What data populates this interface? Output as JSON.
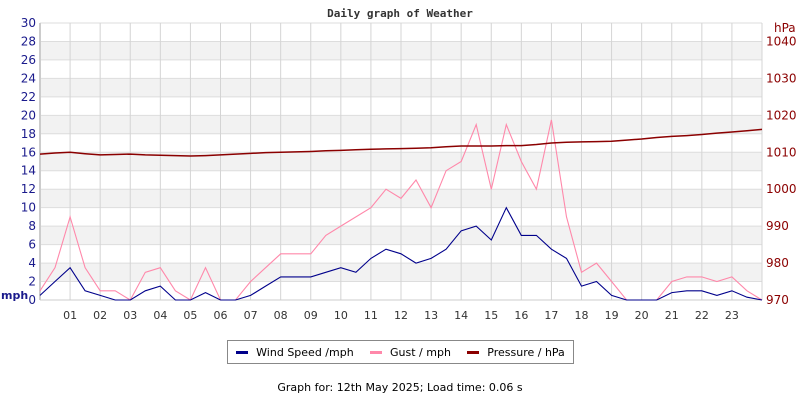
{
  "chart_data": {
    "type": "line",
    "title": "Daily graph of Weather",
    "x_tick_labels": [
      "01",
      "02",
      "03",
      "04",
      "05",
      "06",
      "07",
      "08",
      "09",
      "10",
      "11",
      "12",
      "13",
      "14",
      "15",
      "16",
      "17",
      "18",
      "19",
      "20",
      "21",
      "22",
      "23"
    ],
    "xlim": [
      0,
      24
    ],
    "grid": true,
    "left_axis": {
      "label": "mph",
      "ylim": [
        0,
        30
      ],
      "ticks": [
        0,
        2,
        4,
        6,
        8,
        10,
        12,
        14,
        16,
        18,
        20,
        22,
        24,
        26,
        28,
        30
      ]
    },
    "right_axis": {
      "label": "hPa",
      "ylim": [
        970,
        1045
      ],
      "ticks": [
        970,
        980,
        990,
        1000,
        1010,
        1020,
        1030,
        1040
      ]
    },
    "x": [
      0,
      0.5,
      1,
      1.5,
      2,
      2.5,
      3,
      3.5,
      4,
      4.5,
      5,
      5.5,
      6,
      6.5,
      7,
      7.5,
      8,
      8.5,
      9,
      9.5,
      10,
      10.5,
      11,
      11.5,
      12,
      12.5,
      13,
      13.5,
      14,
      14.5,
      15,
      15.5,
      16,
      16.5,
      17,
      17.5,
      18,
      18.5,
      19,
      19.5,
      20,
      20.5,
      21,
      21.5,
      22,
      22.5,
      23,
      23.5,
      24
    ],
    "series": [
      {
        "name": "Wind Speed /mph",
        "axis": "left",
        "color": "#00008b",
        "values": [
          0.5,
          2,
          3.5,
          1,
          0.5,
          0,
          0,
          1,
          1.5,
          0,
          0,
          0.8,
          0,
          0,
          0.5,
          1.5,
          2.5,
          2.5,
          2.5,
          3,
          3.5,
          3,
          4.5,
          5.5,
          5,
          4,
          4.5,
          5.5,
          7.5,
          8,
          6.5,
          10,
          7,
          7,
          5.5,
          4.5,
          1.5,
          2,
          0.5,
          0,
          0,
          0,
          0.8,
          1,
          1,
          0.5,
          1,
          0.3,
          0
        ]
      },
      {
        "name": "Gust / mph",
        "axis": "left",
        "color": "#ff88aa",
        "values": [
          1,
          3.5,
          9,
          3.5,
          1,
          1,
          0,
          3,
          3.5,
          1,
          0,
          3.5,
          0,
          0,
          2,
          3.5,
          5,
          5,
          5,
          7,
          8,
          9,
          10,
          12,
          11,
          13,
          10,
          14,
          15,
          19,
          12,
          19,
          15,
          12,
          19.5,
          9,
          3,
          4,
          2,
          0,
          0,
          0,
          2,
          2.5,
          2.5,
          2,
          2.5,
          1,
          0
        ]
      },
      {
        "name": "Pressure / hPa",
        "axis": "right",
        "color": "#8b0000",
        "values": [
          1009.5,
          1009.8,
          1010,
          1009.6,
          1009.3,
          1009.4,
          1009.5,
          1009.3,
          1009.2,
          1009.1,
          1009,
          1009.1,
          1009.3,
          1009.5,
          1009.7,
          1009.9,
          1010,
          1010.1,
          1010.2,
          1010.4,
          1010.5,
          1010.7,
          1010.8,
          1010.9,
          1011,
          1011.1,
          1011.2,
          1011.5,
          1011.7,
          1011.7,
          1011.7,
          1011.8,
          1011.8,
          1012.1,
          1012.5,
          1012.7,
          1012.8,
          1012.9,
          1013,
          1013.3,
          1013.6,
          1014,
          1014.3,
          1014.5,
          1014.8,
          1015.2,
          1015.5,
          1015.8,
          1016.2
        ]
      }
    ],
    "legend": "bottom"
  },
  "footer": "Graph for: 12th May 2025; Load time: 0.06 s"
}
